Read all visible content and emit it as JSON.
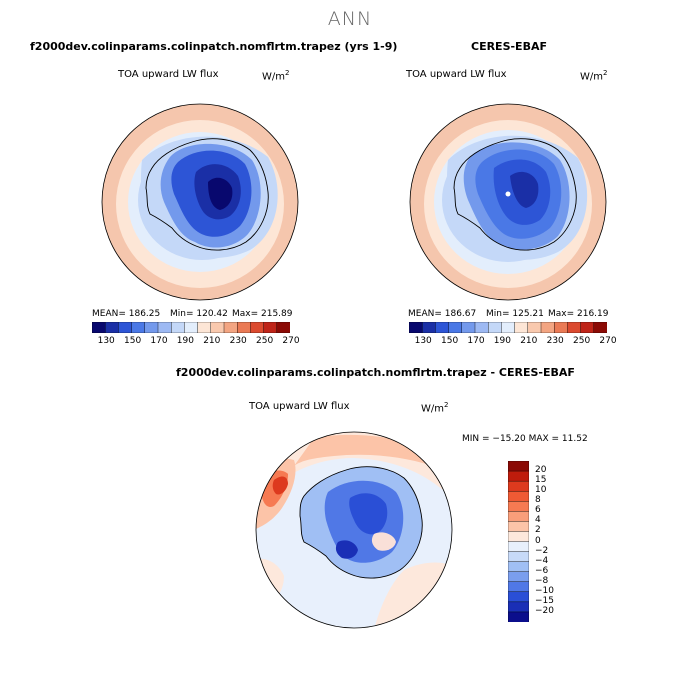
{
  "figure": {
    "title": "ANN"
  },
  "panels": [
    {
      "heading": "f2000dev.colinparams.colinpatch.nomflrtm.trapez (yrs 1-9)",
      "variable": "TOA upward LW flux",
      "units_base": "W/m",
      "units_exp": "2",
      "mean": "MEAN= 186.25",
      "min": "Min= 120.42",
      "max": "Max= 215.89"
    },
    {
      "heading": "CERES-EBAF",
      "variable": "TOA upward LW flux",
      "units_base": "W/m",
      "units_exp": "2",
      "mean": "MEAN= 186.67",
      "min": "Min= 125.21",
      "max": "Max= 216.19"
    }
  ],
  "abs_colorbar": {
    "labels": [
      "130",
      "150",
      "170",
      "190",
      "210",
      "230",
      "250",
      "270"
    ],
    "colors": [
      "#08086e",
      "#1a2fa6",
      "#2d55d6",
      "#4a78e6",
      "#7399ec",
      "#9db9f3",
      "#c4d8f8",
      "#e3eefc",
      "#fde6d6",
      "#f9c9ae",
      "#f3a582",
      "#ea7a55",
      "#db4a2f",
      "#bf2418",
      "#8b0a05"
    ]
  },
  "difference": {
    "heading": "f2000dev.colinparams.colinpatch.nomflrtm.trapez - CERES-EBAF",
    "variable": "TOA upward LW flux",
    "units_base": "W/m",
    "units_exp": "2",
    "minmax": "MIN = −15.20 MAX =  11.52",
    "colorbar_labels": [
      "20",
      "15",
      "10",
      "8",
      "6",
      "4",
      "2",
      "0",
      "−2",
      "−4",
      "−6",
      "−8",
      "−10",
      "−15",
      "−20"
    ],
    "colorbar_colors": [
      "#8b0a05",
      "#bf1c0c",
      "#dd3a1e",
      "#ef5a34",
      "#f67a52",
      "#f99e7a",
      "#fcc4a8",
      "#fde8dc",
      "#e8f0fc",
      "#c7daf8",
      "#a0bff4",
      "#7a9eee",
      "#5078e6",
      "#2a4fd6",
      "#1a2fb6",
      "#0b0e8c"
    ]
  }
}
